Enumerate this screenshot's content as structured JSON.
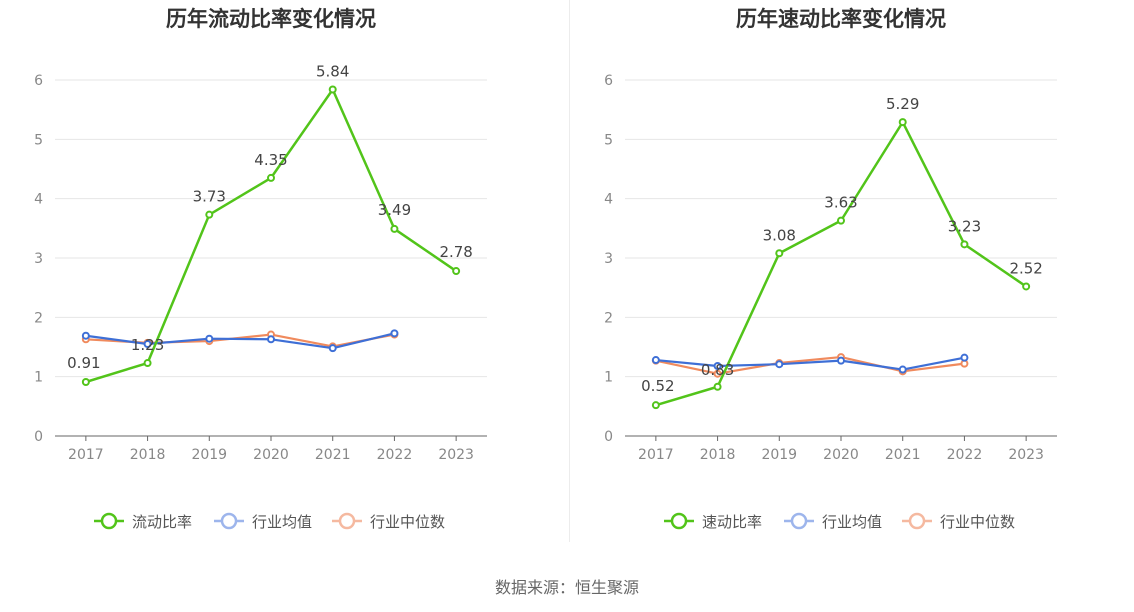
{
  "source": {
    "label": "数据来源：恒生聚源"
  },
  "chart_data": [
    {
      "type": "line",
      "title": "历年流动比率变化情况",
      "categories": [
        "2017",
        "2018",
        "2019",
        "2020",
        "2021",
        "2022",
        "2023"
      ],
      "ylim": [
        0,
        6
      ],
      "yticks": [
        0,
        1,
        2,
        3,
        4,
        5,
        6
      ],
      "grid": true,
      "legend_position": "bottom",
      "series": [
        {
          "name": "流动比率",
          "color": "#52c41a",
          "values": [
            0.91,
            1.23,
            3.73,
            4.35,
            5.84,
            3.49,
            2.78
          ],
          "value_labels": [
            "0.91",
            "1.23",
            "3.73",
            "4.35",
            "5.84",
            "3.49",
            "2.78"
          ]
        },
        {
          "name": "行业均值",
          "color": "#3e6fd6",
          "values": [
            1.69,
            1.55,
            1.64,
            1.63,
            1.48,
            1.73,
            null
          ]
        },
        {
          "name": "行业中位数",
          "color": "#f08a5d",
          "values": [
            1.63,
            1.57,
            1.6,
            1.71,
            1.51,
            1.71,
            null
          ]
        }
      ]
    },
    {
      "type": "line",
      "title": "历年速动比率变化情况",
      "categories": [
        "2017",
        "2018",
        "2019",
        "2020",
        "2021",
        "2022",
        "2023"
      ],
      "ylim": [
        0,
        6
      ],
      "yticks": [
        0,
        1,
        2,
        3,
        4,
        5,
        6
      ],
      "grid": true,
      "legend_position": "bottom",
      "series": [
        {
          "name": "速动比率",
          "color": "#52c41a",
          "values": [
            0.52,
            0.83,
            3.08,
            3.63,
            5.29,
            3.23,
            2.52
          ],
          "value_labels": [
            "0.52",
            "0.83",
            "3.08",
            "3.63",
            "5.29",
            "3.23",
            "2.52"
          ]
        },
        {
          "name": "行业均值",
          "color": "#3e6fd6",
          "values": [
            1.28,
            1.18,
            1.21,
            1.27,
            1.12,
            1.32,
            null
          ]
        },
        {
          "name": "行业中位数",
          "color": "#f08a5d",
          "values": [
            1.27,
            1.05,
            1.23,
            1.33,
            1.09,
            1.22,
            null
          ]
        }
      ]
    }
  ]
}
